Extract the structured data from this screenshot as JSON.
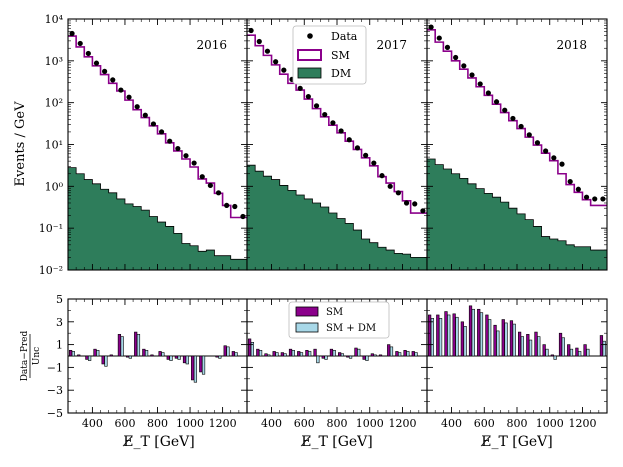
{
  "chart_data": {
    "type": "step-histogram",
    "x_bin_edges": [
      250,
      300,
      350,
      400,
      450,
      500,
      550,
      600,
      650,
      700,
      750,
      800,
      850,
      900,
      950,
      1000,
      1050,
      1100,
      1150,
      1200,
      1250,
      1300,
      1350
    ],
    "x_ticks": [
      400,
      600,
      800,
      1000,
      1200
    ],
    "xlabel": "E̸_T [GeV]",
    "upper": {
      "ylabel": "Events / GeV",
      "yscale": "log",
      "ylim": [
        0.01,
        10000
      ],
      "y_tick_labels": [
        "10⁻²",
        "10⁻¹",
        "10⁰",
        "10¹",
        "10²",
        "10³",
        "10⁴"
      ],
      "legend": {
        "placement": "top-center",
        "data": "Data",
        "sm": "SM",
        "dm": "DM"
      }
    },
    "lower": {
      "ylabel_num": "Data−Pred",
      "ylabel_den": "Unc",
      "ylim": [
        -5,
        5
      ],
      "y_ticks": [
        -5,
        -3,
        -1,
        1,
        3,
        5
      ],
      "legend": {
        "placement": "top-center",
        "sm": "SM",
        "smdm": "SM + DM"
      }
    },
    "colors": {
      "sm_line": "#8b008b",
      "dm_fill": "#2e7d5b",
      "sm_bar": "#8b008b",
      "smdm_bar": "#a8d8e8"
    },
    "panels": [
      {
        "year": "2016",
        "data": [
          4500,
          2600,
          1500,
          880,
          560,
          350,
          200,
          135,
          80,
          50,
          31,
          20,
          12,
          8,
          5.4,
          3.6,
          1.7,
          1.05,
          0.7,
          0.35,
          0.33,
          0.19
        ],
        "sm": [
          3900,
          2150,
          1250,
          760,
          470,
          290,
          190,
          115,
          68,
          44,
          28,
          18,
          11,
          7,
          4.5,
          2.9,
          1.5,
          1.2,
          0.68,
          0.35,
          0.18,
          0.18
        ],
        "dm": [
          2.8,
          2.0,
          1.45,
          1.15,
          0.85,
          0.7,
          0.5,
          0.38,
          0.33,
          0.27,
          0.19,
          0.14,
          0.11,
          0.075,
          0.043,
          0.038,
          0.028,
          0.03,
          0.022,
          0.022,
          0.018,
          0.018
        ],
        "pull_sm": [
          0.5,
          0.1,
          -0.3,
          0.6,
          -0.7,
          0.1,
          1.9,
          -0.1,
          2.1,
          0.6,
          0.1,
          0.4,
          -0.3,
          -0.2,
          -0.6,
          -2.1,
          -1.4,
          0,
          -0.1,
          0.9,
          0.4,
          0
        ],
        "pull_smdm": [
          0.4,
          0,
          -0.4,
          0.5,
          -0.9,
          0,
          1.7,
          -0.2,
          1.9,
          0.5,
          0,
          0.3,
          -0.4,
          -0.3,
          -0.7,
          -2.3,
          -1.6,
          0,
          -0.2,
          0.8,
          0.3,
          0
        ]
      },
      {
        "year": "2017",
        "data": [
          5300,
          2900,
          1700,
          950,
          600,
          360,
          220,
          140,
          84,
          52,
          33,
          21,
          13,
          8.3,
          5.5,
          3.6,
          1.8,
          1.0,
          0.7,
          0.4,
          0.38,
          0.26
        ],
        "sm": [
          4100,
          2300,
          1350,
          800,
          480,
          290,
          200,
          122,
          72,
          46,
          29,
          19,
          12,
          7.6,
          4.8,
          3.1,
          1.7,
          1.2,
          0.75,
          0.45,
          0.23,
          0.23
        ],
        "dm": [
          3.2,
          2.3,
          1.75,
          1.45,
          1.05,
          0.8,
          0.62,
          0.5,
          0.4,
          0.32,
          0.23,
          0.17,
          0.13,
          0.09,
          0.055,
          0.045,
          0.035,
          0.03,
          0.025,
          0.024,
          0.02,
          0.02
        ],
        "pull_sm": [
          1.5,
          0.6,
          0.2,
          0.4,
          0.3,
          0.6,
          0.4,
          0.5,
          0.6,
          -0.2,
          0.6,
          0.3,
          -0.1,
          0.7,
          -0.3,
          0.2,
          0.1,
          1.0,
          0.4,
          0.5,
          0.4,
          0
        ],
        "pull_smdm": [
          1.2,
          0.5,
          0.1,
          0.3,
          0.2,
          0.5,
          0.3,
          0.4,
          -0.6,
          -0.3,
          0.5,
          0.2,
          -0.2,
          0.6,
          -0.4,
          0.1,
          0,
          0.8,
          0.3,
          0.4,
          0.3,
          0
        ]
      },
      {
        "year": "2018",
        "data": [
          6400,
          3500,
          2100,
          1200,
          760,
          460,
          280,
          170,
          105,
          66,
          42,
          27,
          17,
          11,
          7,
          4.8,
          3.4,
          1.3,
          0.85,
          0.55,
          0.5,
          0.5
        ],
        "sm": [
          5500,
          2800,
          1700,
          1000,
          630,
          390,
          240,
          150,
          92,
          58,
          37,
          24,
          15,
          9.7,
          6.2,
          4.1,
          2.0,
          1.1,
          0.72,
          0.48,
          0.35,
          0.35
        ],
        "dm": [
          4.5,
          3.3,
          2.6,
          2.0,
          1.55,
          1.15,
          0.88,
          0.68,
          0.55,
          0.42,
          0.3,
          0.22,
          0.16,
          0.11,
          0.063,
          0.055,
          0.05,
          0.04,
          0.036,
          0.036,
          0.03,
          0.03
        ],
        "pull_sm": [
          3.6,
          3.6,
          3.9,
          3.7,
          3.0,
          4.4,
          4.1,
          3.6,
          2.7,
          3.2,
          3.1,
          2.1,
          1.9,
          2.1,
          1.0,
          0.1,
          2.0,
          1.0,
          0.7,
          1.0,
          0.0,
          1.8
        ],
        "pull_smdm": [
          3.3,
          3.3,
          3.6,
          3.4,
          2.6,
          4.1,
          3.8,
          3.2,
          2.2,
          2.9,
          2.8,
          1.7,
          1.4,
          1.7,
          0.6,
          -0.3,
          1.6,
          0.6,
          0.4,
          0.6,
          0.0,
          1.3
        ]
      }
    ]
  }
}
